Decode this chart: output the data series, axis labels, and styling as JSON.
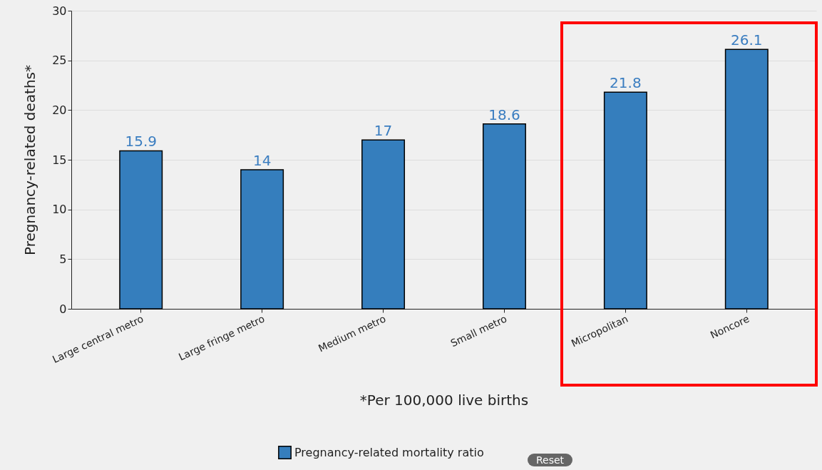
{
  "chart_data": {
    "type": "bar",
    "ylabel": "Pregnancy-related deaths*",
    "xlabel": "*Per 100,000 live births",
    "categories": [
      "Large central metro",
      "Large fringe metro",
      "Medium metro",
      "Small metro",
      "Micropolitan",
      "Noncore"
    ],
    "series": [
      {
        "name": "Pregnancy-related mortality ratio",
        "color": "#357ebd",
        "values": [
          15.9,
          14,
          17,
          18.6,
          21.8,
          26.1
        ]
      }
    ],
    "ylim": [
      0,
      30
    ],
    "yticks": [
      0,
      5,
      10,
      15,
      20,
      25,
      30
    ],
    "grid": "y",
    "data_labels": true,
    "legend": "bottom",
    "annotations": [
      "Reset"
    ]
  }
}
